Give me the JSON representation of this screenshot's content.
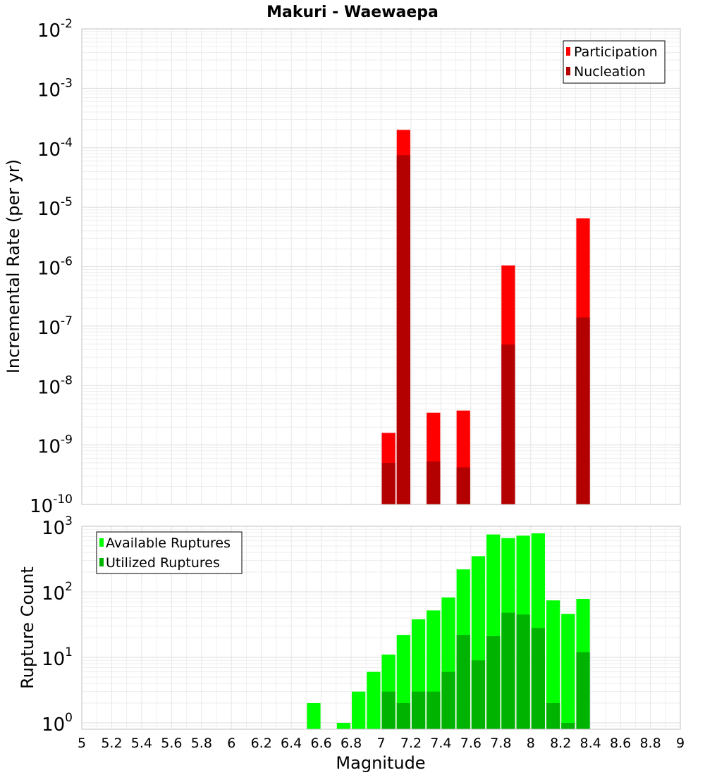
{
  "chart_data": [
    {
      "type": "bar",
      "title": "Makuri - Waewaepa",
      "xlabel": "",
      "ylabel": "Incremental Rate (per yr)",
      "y_scale": "log",
      "ylim": [
        1e-10,
        0.01
      ],
      "xlim": [
        5,
        9
      ],
      "bin_width": 0.1,
      "grid": true,
      "legend_position": "top-right",
      "y_ticks": [
        {
          "base": "10",
          "exp": "-10",
          "value": 1e-10
        },
        {
          "base": "10",
          "exp": "-9",
          "value": 1e-09
        },
        {
          "base": "10",
          "exp": "-8",
          "value": 1e-08
        },
        {
          "base": "10",
          "exp": "-7",
          "value": 1e-07
        },
        {
          "base": "10",
          "exp": "-6",
          "value": 1e-06
        },
        {
          "base": "10",
          "exp": "-5",
          "value": 1e-05
        },
        {
          "base": "10",
          "exp": "-4",
          "value": 0.0001
        },
        {
          "base": "10",
          "exp": "-3",
          "value": 0.001
        },
        {
          "base": "10",
          "exp": "-2",
          "value": 0.01
        }
      ],
      "series": [
        {
          "name": "Participation",
          "color": "#ff0000",
          "x": [
            7.05,
            7.15,
            7.35,
            7.55,
            7.85,
            8.35
          ],
          "values": [
            1.6e-09,
            0.0002,
            3.5e-09,
            3.8e-09,
            1.05e-06,
            6.5e-06
          ]
        },
        {
          "name": "Nucleation",
          "color": "#b30000",
          "x": [
            7.05,
            7.15,
            7.35,
            7.55,
            7.85,
            8.35
          ],
          "values": [
            5e-10,
            7.5e-05,
            5.3e-10,
            4.2e-10,
            4.9e-08,
            1.4e-07
          ]
        }
      ]
    },
    {
      "type": "bar",
      "title": "",
      "xlabel": "Magnitude",
      "ylabel": "Rupture Count",
      "y_scale": "log",
      "ylim": [
        0.8,
        1000
      ],
      "xlim": [
        5,
        9
      ],
      "bin_width": 0.1,
      "grid": true,
      "legend_position": "top-left",
      "x_ticks": [
        "5",
        "5.2",
        "5.4",
        "5.6",
        "5.8",
        "6",
        "6.2",
        "6.4",
        "6.6",
        "6.8",
        "7",
        "7.2",
        "7.4",
        "7.6",
        "7.8",
        "8",
        "8.2",
        "8.4",
        "8.6",
        "8.8",
        "9"
      ],
      "y_ticks": [
        {
          "base": "10",
          "exp": "0",
          "value": 1
        },
        {
          "base": "10",
          "exp": "1",
          "value": 10
        },
        {
          "base": "10",
          "exp": "2",
          "value": 100
        },
        {
          "base": "10",
          "exp": "3",
          "value": 1000
        }
      ],
      "series": [
        {
          "name": "Available Ruptures",
          "color": "#00ff00",
          "x": [
            6.55,
            6.75,
            6.85,
            6.95,
            7.05,
            7.15,
            7.25,
            7.35,
            7.45,
            7.55,
            7.65,
            7.75,
            7.85,
            7.95,
            8.05,
            8.15,
            8.25,
            8.35
          ],
          "values": [
            2,
            1,
            3,
            6,
            11,
            22,
            38,
            52,
            82,
            220,
            350,
            750,
            660,
            720,
            780,
            74,
            46,
            78
          ]
        },
        {
          "name": "Utilized Ruptures",
          "color": "#00b300",
          "x": [
            7.05,
            7.15,
            7.25,
            7.35,
            7.45,
            7.55,
            7.65,
            7.75,
            7.85,
            7.95,
            8.05,
            8.15,
            8.25,
            8.35
          ],
          "values": [
            3,
            2,
            3,
            3,
            6,
            22,
            9,
            21,
            48,
            45,
            28,
            2,
            1,
            12
          ]
        }
      ]
    }
  ]
}
